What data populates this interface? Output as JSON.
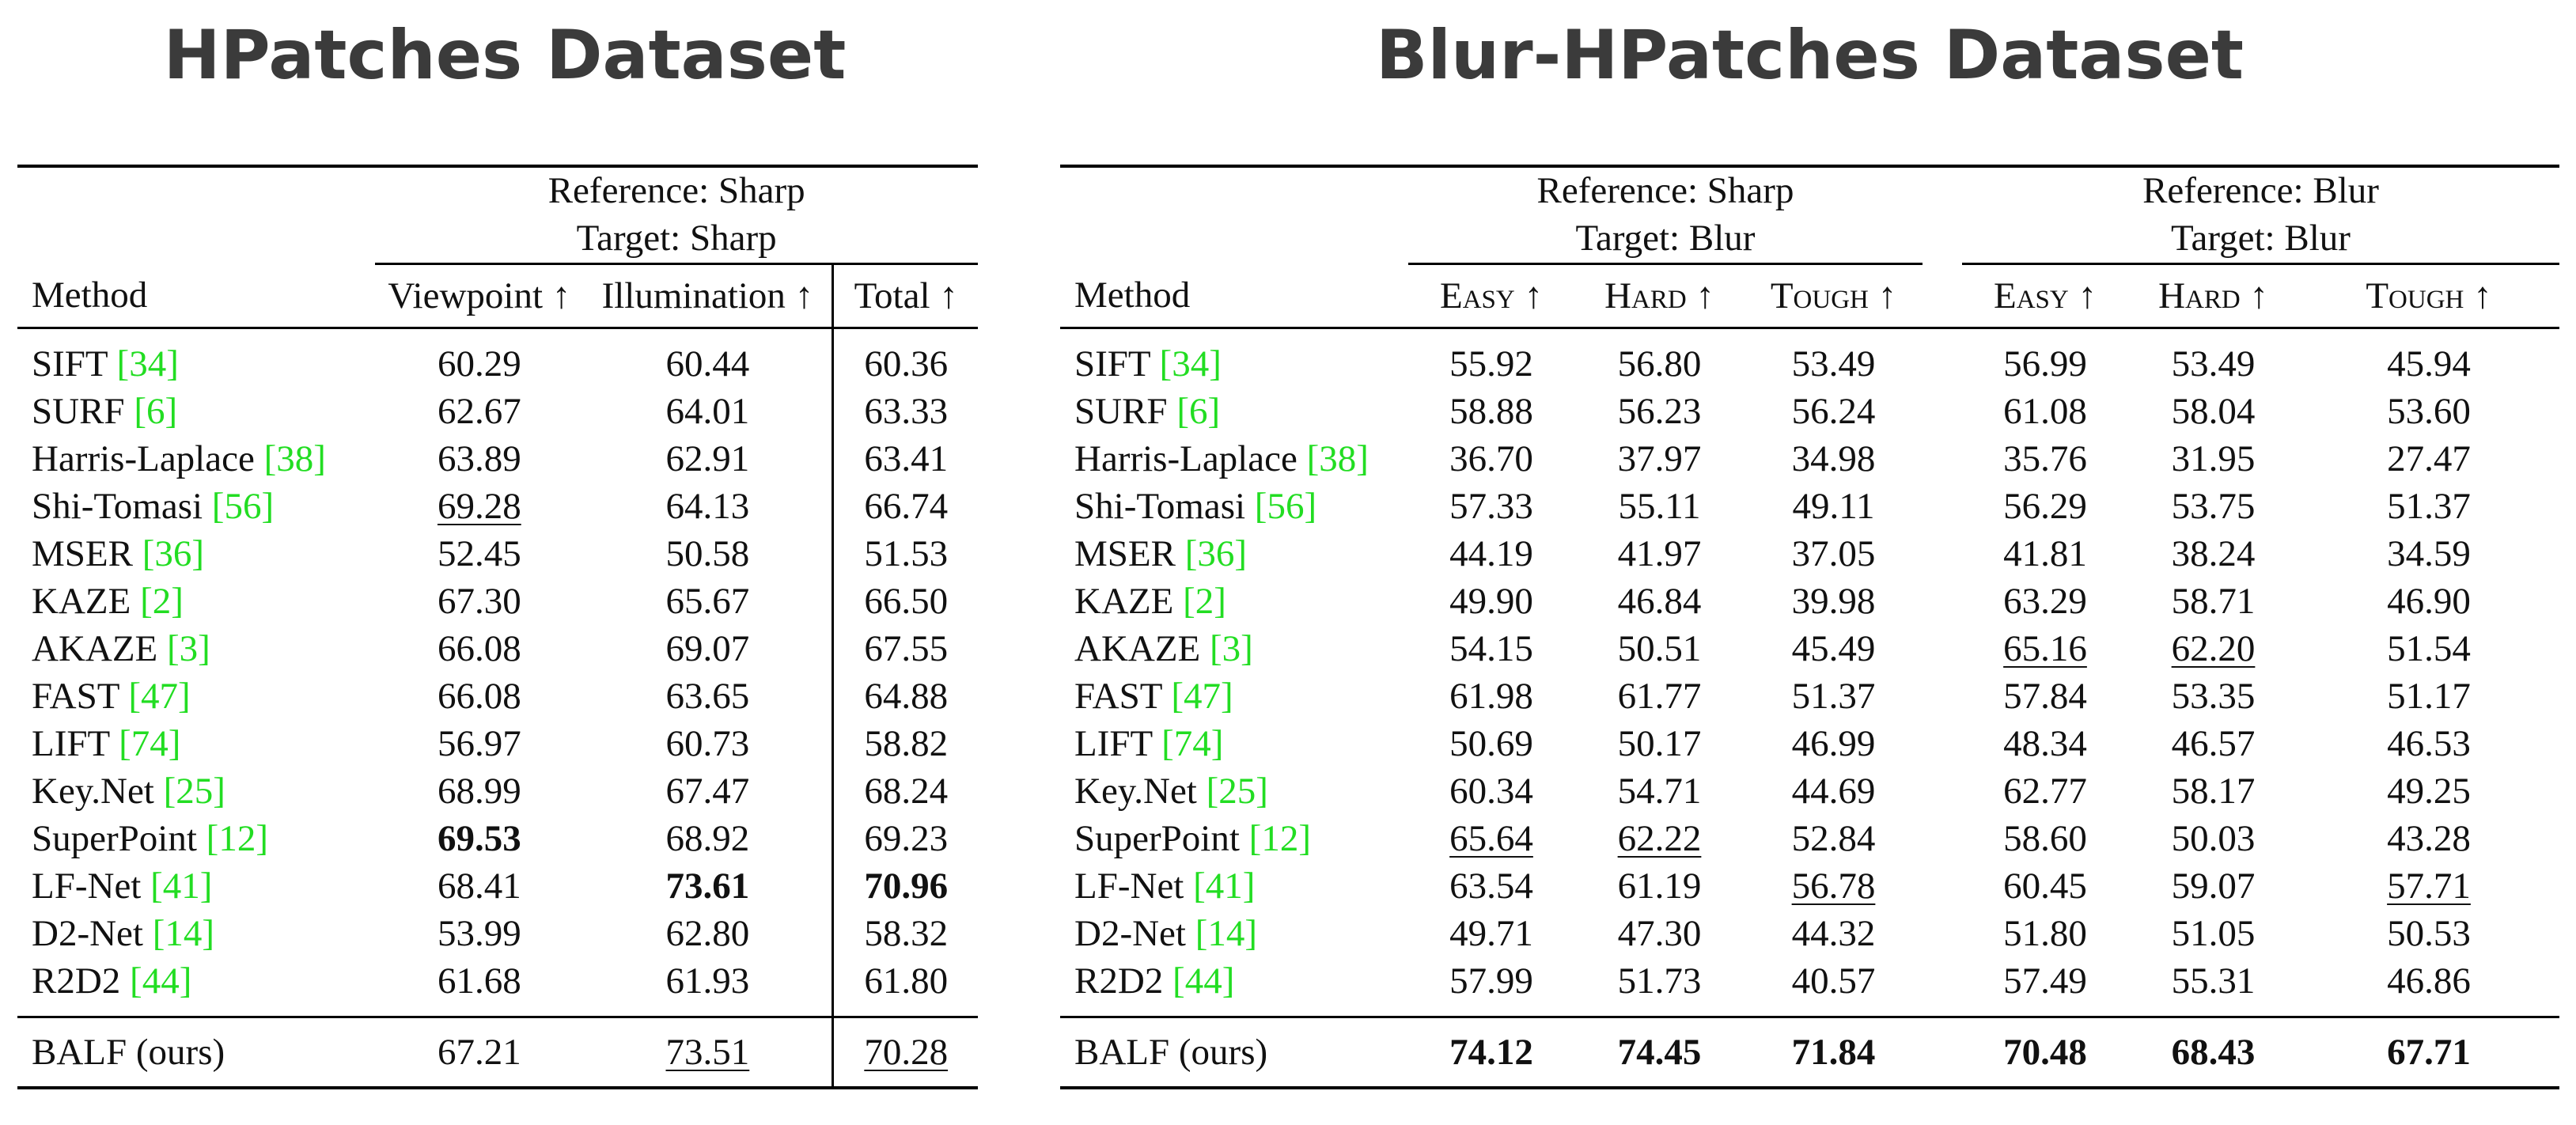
{
  "titles": {
    "left": "HPatches Dataset",
    "right": "Blur-HPatches Dataset"
  },
  "left_table": {
    "group": {
      "ref": "Reference: Sharp",
      "tgt": "Target: Sharp"
    },
    "headers": [
      "Method",
      "Viewpoint ↑",
      "Illumination ↑",
      "Total ↑"
    ],
    "rows": [
      {
        "name": "SIFT",
        "cite": "34",
        "vals": [
          "60.29",
          "60.44",
          "60.36"
        ]
      },
      {
        "name": "SURF",
        "cite": "6",
        "vals": [
          "62.67",
          "64.01",
          "63.33"
        ]
      },
      {
        "name": "Harris-Laplace",
        "cite": "38",
        "vals": [
          "63.89",
          "62.91",
          "63.41"
        ]
      },
      {
        "name": "Shi-Tomasi",
        "cite": "56",
        "vals": [
          "69.28",
          "64.13",
          "66.74"
        ]
      },
      {
        "name": "MSER",
        "cite": "36",
        "vals": [
          "52.45",
          "50.58",
          "51.53"
        ]
      },
      {
        "name": "KAZE",
        "cite": "2",
        "vals": [
          "67.30",
          "65.67",
          "66.50"
        ]
      },
      {
        "name": "AKAZE",
        "cite": "3",
        "vals": [
          "66.08",
          "69.07",
          "67.55"
        ]
      },
      {
        "name": "FAST",
        "cite": "47",
        "vals": [
          "66.08",
          "63.65",
          "64.88"
        ]
      },
      {
        "name": "LIFT",
        "cite": "74",
        "vals": [
          "56.97",
          "60.73",
          "58.82"
        ]
      },
      {
        "name": "Key.Net",
        "cite": "25",
        "vals": [
          "68.99",
          "67.47",
          "68.24"
        ]
      },
      {
        "name": "SuperPoint",
        "cite": "12",
        "vals": [
          "69.53",
          "68.92",
          "69.23"
        ]
      },
      {
        "name": "LF-Net",
        "cite": "41",
        "vals": [
          "68.41",
          "73.61",
          "70.96"
        ]
      },
      {
        "name": "D2-Net",
        "cite": "14",
        "vals": [
          "53.99",
          "62.80",
          "58.32"
        ]
      },
      {
        "name": "R2D2",
        "cite": "44",
        "vals": [
          "61.68",
          "61.93",
          "61.80"
        ]
      }
    ],
    "ours": {
      "name": "BALF (ours)",
      "vals": [
        "67.21",
        "73.51",
        "70.28"
      ]
    }
  },
  "right_table": {
    "group1": {
      "ref": "Reference: Sharp",
      "tgt": "Target: Blur"
    },
    "group2": {
      "ref": "Reference: Blur",
      "tgt": "Target: Blur"
    },
    "headers": [
      "Method",
      "Easy ↑",
      "Hard ↑",
      "Tough ↑",
      "Easy ↑",
      "Hard ↑",
      "Tough ↑"
    ],
    "rows": [
      {
        "name": "SIFT",
        "cite": "34",
        "vals": [
          "55.92",
          "56.80",
          "53.49",
          "56.99",
          "53.49",
          "45.94"
        ]
      },
      {
        "name": "SURF",
        "cite": "6",
        "vals": [
          "58.88",
          "56.23",
          "56.24",
          "61.08",
          "58.04",
          "53.60"
        ]
      },
      {
        "name": "Harris-Laplace",
        "cite": "38",
        "vals": [
          "36.70",
          "37.97",
          "34.98",
          "35.76",
          "31.95",
          "27.47"
        ]
      },
      {
        "name": "Shi-Tomasi",
        "cite": "56",
        "vals": [
          "57.33",
          "55.11",
          "49.11",
          "56.29",
          "53.75",
          "51.37"
        ]
      },
      {
        "name": "MSER",
        "cite": "36",
        "vals": [
          "44.19",
          "41.97",
          "37.05",
          "41.81",
          "38.24",
          "34.59"
        ]
      },
      {
        "name": "KAZE",
        "cite": "2",
        "vals": [
          "49.90",
          "46.84",
          "39.98",
          "63.29",
          "58.71",
          "46.90"
        ]
      },
      {
        "name": "AKAZE",
        "cite": "3",
        "vals": [
          "54.15",
          "50.51",
          "45.49",
          "65.16",
          "62.20",
          "51.54"
        ]
      },
      {
        "name": "FAST",
        "cite": "47",
        "vals": [
          "61.98",
          "61.77",
          "51.37",
          "57.84",
          "53.35",
          "51.17"
        ]
      },
      {
        "name": "LIFT",
        "cite": "74",
        "vals": [
          "50.69",
          "50.17",
          "46.99",
          "48.34",
          "46.57",
          "46.53"
        ]
      },
      {
        "name": "Key.Net",
        "cite": "25",
        "vals": [
          "60.34",
          "54.71",
          "44.69",
          "62.77",
          "58.17",
          "49.25"
        ]
      },
      {
        "name": "SuperPoint",
        "cite": "12",
        "vals": [
          "65.64",
          "62.22",
          "52.84",
          "58.60",
          "50.03",
          "43.28"
        ]
      },
      {
        "name": "LF-Net",
        "cite": "41",
        "vals": [
          "63.54",
          "61.19",
          "56.78",
          "60.45",
          "59.07",
          "57.71"
        ]
      },
      {
        "name": "D2-Net",
        "cite": "14",
        "vals": [
          "49.71",
          "47.30",
          "44.32",
          "51.80",
          "51.05",
          "50.53"
        ]
      },
      {
        "name": "R2D2",
        "cite": "44",
        "vals": [
          "57.99",
          "51.73",
          "40.57",
          "57.49",
          "55.31",
          "46.86"
        ]
      }
    ],
    "ours": {
      "name": "BALF (ours)",
      "vals": [
        "74.12",
        "74.45",
        "71.84",
        "70.48",
        "68.43",
        "67.71"
      ]
    }
  },
  "styling": {
    "cite_color": "#22dd22",
    "bold": [
      "left.10.0",
      "left.11.1",
      "left.11.2",
      "right.ours.all"
    ],
    "underline": [
      "left.3.0",
      "left.ours.1",
      "left.ours.2",
      "right.6.3",
      "right.6.4",
      "right.10.0",
      "right.10.1",
      "right.11.2",
      "right.11.5"
    ]
  }
}
